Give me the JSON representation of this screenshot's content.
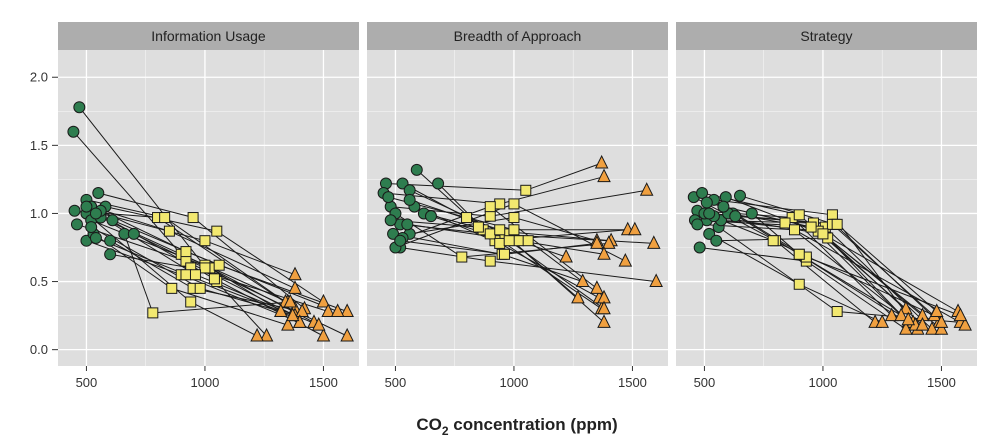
{
  "chart_data": {
    "type": "scatter",
    "title": "",
    "xlabel_main": "CO",
    "xlabel_sub": "2",
    "xlabel_rest": " concentration (ppm)",
    "ylabel": "",
    "xlim": [
      380,
      1650
    ],
    "ylim": [
      -0.12,
      2.2
    ],
    "x_ticks": [
      500,
      1000,
      1500
    ],
    "y_ticks": [
      0.0,
      0.5,
      1.0,
      1.5,
      2.0
    ],
    "x_tick_labels": [
      "500",
      "1000",
      "1500"
    ],
    "y_tick_labels": [
      "0.0",
      "0.5",
      "1.0",
      "1.5",
      "2.0"
    ],
    "grid": true,
    "colors": {
      "panel_bg": "#dedede",
      "strip_bg": "#adadad",
      "grid": "#ffffff",
      "circle": "#2e7d4f",
      "square": "#f2e870",
      "triangle": "#f0a040",
      "stroke": "#1a1a1a"
    },
    "marker_legend": {
      "low": "circle",
      "mid": "square",
      "high": "triangle"
    },
    "panels": [
      {
        "label": "Information Usage",
        "subjects": [
          [
            [
              445,
              1.6
            ],
            [
              900,
              0.7
            ],
            [
              1350,
              0.35
            ]
          ],
          [
            [
              470,
              1.78
            ],
            [
              1050,
              0.5
            ],
            [
              1260,
              0.1
            ]
          ],
          [
            [
              450,
              1.02
            ],
            [
              800,
              0.97
            ],
            [
              1380,
              0.3
            ]
          ],
          [
            [
              500,
              1.1
            ],
            [
              830,
              0.97
            ],
            [
              1340,
              0.35
            ]
          ],
          [
            [
              520,
              1.05
            ],
            [
              850,
              0.87
            ],
            [
              1380,
              0.45
            ]
          ],
          [
            [
              550,
              1.15
            ],
            [
              950,
              0.97
            ],
            [
              1420,
              0.3
            ]
          ],
          [
            [
              580,
              1.05
            ],
            [
              1050,
              0.87
            ],
            [
              1500,
              0.35
            ]
          ],
          [
            [
              460,
              0.92
            ],
            [
              920,
              0.65
            ],
            [
              1380,
              0.25
            ]
          ],
          [
            [
              500,
              0.8
            ],
            [
              900,
              0.55
            ],
            [
              1400,
              0.2
            ]
          ],
          [
            [
              530,
              0.85
            ],
            [
              860,
              0.45
            ],
            [
              1350,
              0.18
            ]
          ],
          [
            [
              560,
              1.0
            ],
            [
              1000,
              0.8
            ],
            [
              1380,
              0.55
            ]
          ],
          [
            [
              600,
              0.8
            ],
            [
              950,
              0.45
            ],
            [
              1410,
              0.28
            ]
          ],
          [
            [
              600,
              0.7
            ],
            [
              940,
              0.6
            ],
            [
              1520,
              0.28
            ]
          ],
          [
            [
              660,
              0.85
            ],
            [
              780,
              0.27
            ],
            [
              1360,
              0.35
            ]
          ],
          [
            [
              500,
              1.0
            ],
            [
              940,
              0.35
            ],
            [
              1220,
              0.1
            ]
          ],
          [
            [
              520,
              0.95
            ],
            [
              1020,
              0.6
            ],
            [
              1400,
              0.2
            ]
          ],
          [
            [
              540,
              0.82
            ],
            [
              920,
              0.55
            ],
            [
              1370,
              0.25
            ]
          ],
          [
            [
              560,
              0.97
            ],
            [
              1000,
              0.62
            ],
            [
              1460,
              0.2
            ]
          ],
          [
            [
              500,
              1.05
            ],
            [
              1040,
              0.52
            ],
            [
              1500,
              0.1
            ]
          ],
          [
            [
              610,
              0.95
            ],
            [
              1060,
              0.62
            ],
            [
              1600,
              0.28
            ]
          ],
          [
            [
              520,
              0.9
            ],
            [
              980,
              0.45
            ],
            [
              1320,
              0.28
            ]
          ],
          [
            [
              560,
              1.02
            ],
            [
              920,
              0.72
            ],
            [
              1560,
              0.28
            ]
          ],
          [
            [
              700,
              0.85
            ],
            [
              1000,
              0.6
            ],
            [
              1600,
              0.1
            ]
          ],
          [
            [
              540,
              1.0
            ],
            [
              960,
              0.55
            ],
            [
              1480,
              0.18
            ]
          ]
        ]
      },
      {
        "label": "Breadth of Approach",
        "subjects": [
          [
            [
              460,
              1.22
            ],
            [
              1050,
              1.17
            ],
            [
              1370,
              1.37
            ]
          ],
          [
            [
              450,
              1.15
            ],
            [
              940,
              1.07
            ],
            [
              1380,
              1.27
            ]
          ],
          [
            [
              480,
              1.05
            ],
            [
              900,
              0.98
            ],
            [
              1560,
              1.17
            ]
          ],
          [
            [
              530,
              1.22
            ],
            [
              800,
              0.97
            ],
            [
              1370,
              0.3
            ]
          ],
          [
            [
              560,
              1.17
            ],
            [
              960,
              0.85
            ],
            [
              1380,
              0.2
            ]
          ],
          [
            [
              590,
              1.32
            ],
            [
              870,
              0.88
            ],
            [
              1410,
              0.8
            ]
          ],
          [
            [
              680,
              1.22
            ],
            [
              920,
              0.8
            ],
            [
              1480,
              0.88
            ]
          ],
          [
            [
              470,
              1.12
            ],
            [
              1000,
              0.88
            ],
            [
              1510,
              0.88
            ]
          ],
          [
            [
              500,
              1.0
            ],
            [
              780,
              0.68
            ],
            [
              1400,
              0.78
            ]
          ],
          [
            [
              520,
              0.92
            ],
            [
              900,
              0.85
            ],
            [
              1590,
              0.78
            ]
          ],
          [
            [
              560,
              0.85
            ],
            [
              1000,
              0.97
            ],
            [
              1350,
              0.8
            ]
          ],
          [
            [
              490,
              0.85
            ],
            [
              950,
              0.7
            ],
            [
              1290,
              0.5
            ]
          ],
          [
            [
              520,
              0.75
            ],
            [
              900,
              0.65
            ],
            [
              1600,
              0.5
            ]
          ],
          [
            [
              550,
              0.92
            ],
            [
              1020,
              0.8
            ],
            [
              1380,
              0.7
            ]
          ],
          [
            [
              580,
              1.05
            ],
            [
              940,
              0.78
            ],
            [
              1360,
              0.38
            ]
          ],
          [
            [
              500,
              0.75
            ],
            [
              1000,
              1.07
            ],
            [
              1470,
              0.65
            ]
          ],
          [
            [
              530,
              0.82
            ],
            [
              900,
              1.05
            ],
            [
              1350,
              0.45
            ]
          ],
          [
            [
              620,
              1.0
            ],
            [
              1060,
              0.8
            ],
            [
              1380,
              0.38
            ]
          ],
          [
            [
              480,
              0.95
            ],
            [
              850,
              0.9
            ],
            [
              1220,
              0.68
            ]
          ],
          [
            [
              560,
              1.1
            ],
            [
              940,
              0.88
            ],
            [
              1270,
              0.38
            ]
          ],
          [
            [
              650,
              0.98
            ],
            [
              980,
              0.8
            ],
            [
              1380,
              0.3
            ]
          ],
          [
            [
              520,
              0.8
            ],
            [
              960,
              0.7
            ],
            [
              1350,
              0.78
            ]
          ]
        ]
      },
      {
        "label": "Strategy",
        "subjects": [
          [
            [
              455,
              1.12
            ],
            [
              800,
              0.8
            ],
            [
              1220,
              0.2
            ]
          ],
          [
            [
              470,
              1.02
            ],
            [
              870,
              0.97
            ],
            [
              1290,
              0.25
            ]
          ],
          [
            [
              490,
              1.15
            ],
            [
              900,
              0.99
            ],
            [
              1350,
              0.3
            ]
          ],
          [
            [
              510,
              0.95
            ],
            [
              960,
              0.93
            ],
            [
              1360,
              0.2
            ]
          ],
          [
            [
              540,
              1.1
            ],
            [
              1040,
              0.99
            ],
            [
              1380,
              0.2
            ]
          ],
          [
            [
              560,
              0.9
            ],
            [
              1060,
              0.28
            ],
            [
              1580,
              0.2
            ]
          ],
          [
            [
              590,
              1.12
            ],
            [
              1000,
              0.85
            ],
            [
              1420,
              0.25
            ]
          ],
          [
            [
              620,
              1.0
            ],
            [
              900,
              0.7
            ],
            [
              1400,
              0.15
            ]
          ],
          [
            [
              650,
              1.13
            ],
            [
              1050,
              0.92
            ],
            [
              1490,
              0.2
            ]
          ],
          [
            [
              460,
              0.95
            ],
            [
              1010,
              0.9
            ],
            [
              1460,
              0.15
            ]
          ],
          [
            [
              480,
              0.75
            ],
            [
              930,
              0.65
            ],
            [
              1350,
              0.15
            ]
          ],
          [
            [
              500,
              1.0
            ],
            [
              790,
              0.8
            ],
            [
              1470,
              0.25
            ]
          ],
          [
            [
              520,
              0.85
            ],
            [
              900,
              0.48
            ],
            [
              1250,
              0.2
            ]
          ],
          [
            [
              550,
              0.8
            ],
            [
              1020,
              0.82
            ],
            [
              1500,
              0.15
            ]
          ],
          [
            [
              570,
              0.95
            ],
            [
              980,
              0.87
            ],
            [
              1570,
              0.28
            ]
          ],
          [
            [
              600,
              1.0
            ],
            [
              840,
              0.93
            ],
            [
              1390,
              0.18
            ]
          ],
          [
            [
              630,
              0.98
            ],
            [
              1040,
              0.92
            ],
            [
              1500,
              0.2
            ]
          ],
          [
            [
              470,
              0.92
            ],
            [
              880,
              0.88
            ],
            [
              1600,
              0.18
            ]
          ],
          [
            [
              510,
              1.08
            ],
            [
              950,
              0.9
            ],
            [
              1330,
              0.25
            ]
          ],
          [
            [
              540,
              0.98
            ],
            [
              1000,
              0.85
            ],
            [
              1420,
              0.18
            ]
          ],
          [
            [
              580,
              1.05
            ],
            [
              930,
              0.68
            ],
            [
              1580,
              0.25
            ]
          ],
          [
            [
              520,
              1.0
            ],
            [
              1060,
              0.92
            ],
            [
              1480,
              0.28
            ]
          ],
          [
            [
              700,
              1.0
            ],
            [
              900,
              0.7
            ],
            [
              1360,
              0.22
            ]
          ]
        ]
      }
    ]
  }
}
